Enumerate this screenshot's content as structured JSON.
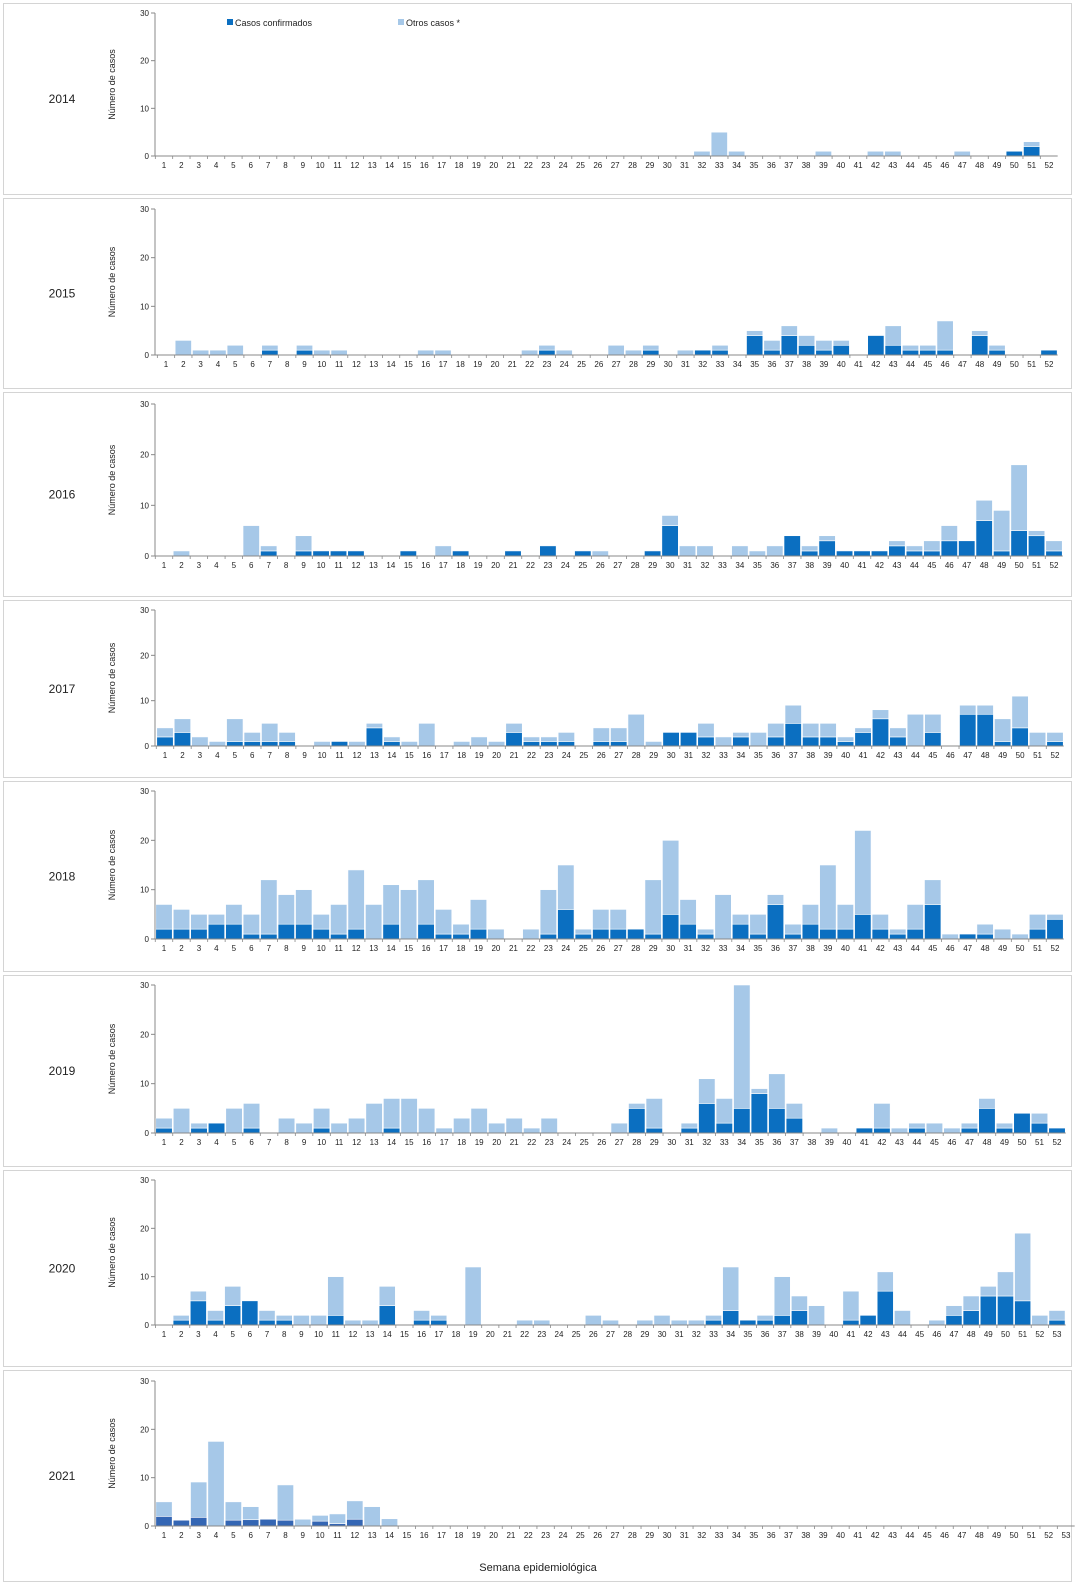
{
  "colors": {
    "confirmed": "#0b6fc1",
    "other": "#a6c8e8",
    "confirmed_alt": "#3466b4"
  },
  "legend": {
    "confirmed": "Casos confirmados",
    "other": "Otros casos *"
  },
  "x_axis_title": "Semana epidemiológica",
  "chart_data": [
    {
      "type": "bar",
      "year": "2014",
      "ylabel": "Número de casos",
      "ylim": [
        0,
        30
      ],
      "yticks": [
        0,
        10,
        20,
        30
      ],
      "weeks": 52,
      "series": [
        {
          "name": "Casos confirmados",
          "values": [
            0,
            0,
            0,
            0,
            0,
            0,
            0,
            0,
            0,
            0,
            0,
            0,
            0,
            0,
            0,
            0,
            0,
            0,
            0,
            0,
            0,
            0,
            0,
            0,
            0,
            0,
            0,
            0,
            0,
            0,
            0,
            0,
            0,
            0,
            0,
            0,
            0,
            0,
            0,
            0,
            0,
            0,
            0,
            0,
            0,
            0,
            0,
            0,
            0,
            1,
            2,
            0
          ]
        },
        {
          "name": "Otros casos *",
          "values": [
            0,
            0,
            0,
            0,
            0,
            0,
            0,
            0,
            0,
            0,
            0,
            0,
            0,
            0,
            0,
            0,
            0,
            0,
            0,
            0,
            0,
            0,
            0,
            0,
            0,
            0,
            0,
            0,
            0,
            0,
            0,
            1,
            5,
            1,
            0,
            0,
            0,
            0,
            1,
            0,
            0,
            1,
            1,
            0,
            0,
            0,
            1,
            0,
            0,
            0,
            1,
            0
          ]
        }
      ]
    },
    {
      "type": "bar",
      "year": "2015",
      "ylabel": "Número de casos",
      "ylim": [
        0,
        30
      ],
      "yticks": [
        0,
        10,
        20,
        30
      ],
      "weeks": 52,
      "series": [
        {
          "name": "Casos confirmados",
          "values": [
            0,
            0,
            0,
            0,
            0,
            0,
            1,
            0,
            1,
            0,
            0,
            0,
            0,
            0,
            0,
            0,
            0,
            0,
            0,
            0,
            0,
            0,
            1,
            0,
            0,
            0,
            0,
            0,
            1,
            0,
            0,
            1,
            1,
            0,
            4,
            1,
            4,
            2,
            1,
            2,
            0,
            4,
            2,
            1,
            1,
            1,
            0,
            4,
            1,
            0,
            0,
            1
          ]
        },
        {
          "name": "Otros casos *",
          "values": [
            0,
            3,
            1,
            1,
            2,
            0,
            1,
            0,
            1,
            1,
            1,
            0,
            0,
            0,
            0,
            1,
            1,
            0,
            0,
            0,
            0,
            1,
            1,
            1,
            0,
            0,
            2,
            1,
            1,
            0,
            1,
            0,
            1,
            0,
            1,
            2,
            2,
            2,
            2,
            1,
            0,
            0,
            4,
            1,
            1,
            6,
            0,
            1,
            1,
            0,
            0,
            0
          ]
        }
      ]
    },
    {
      "type": "bar",
      "year": "2016",
      "ylabel": "Número de casos",
      "ylim": [
        0,
        30
      ],
      "yticks": [
        0,
        10,
        20,
        30
      ],
      "weeks": 52,
      "series": [
        {
          "name": "Casos confirmados",
          "values": [
            0,
            0,
            0,
            0,
            0,
            0,
            1,
            0,
            1,
            1,
            1,
            1,
            0,
            0,
            1,
            0,
            0,
            1,
            0,
            0,
            1,
            0,
            2,
            0,
            1,
            0,
            0,
            0,
            1,
            6,
            0,
            0,
            0,
            0,
            0,
            0,
            4,
            1,
            3,
            1,
            1,
            1,
            2,
            1,
            1,
            3,
            3,
            7,
            1,
            5,
            4,
            1
          ]
        },
        {
          "name": "Otros casos *",
          "values": [
            0,
            1,
            0,
            0,
            0,
            6,
            1,
            0,
            3,
            0,
            0,
            0,
            0,
            0,
            0,
            0,
            2,
            0,
            0,
            0,
            0,
            0,
            0,
            0,
            0,
            1,
            0,
            0,
            0,
            2,
            2,
            2,
            0,
            2,
            1,
            2,
            0,
            1,
            1,
            0,
            0,
            0,
            1,
            1,
            2,
            3,
            0,
            4,
            8,
            13,
            1,
            2
          ]
        }
      ]
    },
    {
      "type": "bar",
      "year": "2017",
      "ylabel": "Número de casos",
      "ylim": [
        0,
        30
      ],
      "yticks": [
        0,
        10,
        20,
        30
      ],
      "weeks": 52,
      "series": [
        {
          "name": "Casos confirmados",
          "values": [
            2,
            3,
            0,
            0,
            1,
            1,
            1,
            1,
            0,
            0,
            1,
            0,
            4,
            1,
            0,
            0,
            0,
            0,
            0,
            0,
            3,
            1,
            1,
            1,
            0,
            1,
            1,
            0,
            0,
            3,
            3,
            2,
            0,
            2,
            0,
            2,
            5,
            2,
            2,
            1,
            3,
            6,
            2,
            0,
            3,
            0,
            7,
            7,
            1,
            4,
            0,
            1
          ]
        },
        {
          "name": "Otros casos *",
          "values": [
            2,
            3,
            2,
            1,
            5,
            2,
            4,
            2,
            0,
            1,
            0,
            1,
            1,
            1,
            1,
            5,
            0,
            1,
            2,
            1,
            2,
            1,
            1,
            2,
            0,
            3,
            3,
            7,
            1,
            0,
            0,
            3,
            2,
            1,
            3,
            3,
            4,
            3,
            3,
            1,
            1,
            2,
            2,
            7,
            4,
            0,
            2,
            2,
            5,
            7,
            3,
            2
          ]
        }
      ]
    },
    {
      "type": "bar",
      "year": "2018",
      "ylabel": "Número de casos",
      "ylim": [
        0,
        30
      ],
      "yticks": [
        0,
        10,
        20,
        30
      ],
      "weeks": 52,
      "series": [
        {
          "name": "Casos confirmados",
          "values": [
            2,
            2,
            2,
            3,
            3,
            1,
            1,
            3,
            3,
            2,
            1,
            2,
            0,
            3,
            0,
            3,
            1,
            1,
            2,
            0,
            0,
            0,
            1,
            6,
            1,
            2,
            2,
            2,
            1,
            5,
            3,
            1,
            0,
            3,
            1,
            7,
            1,
            3,
            2,
            2,
            5,
            2,
            1,
            2,
            7,
            0,
            1,
            1,
            0,
            0,
            2,
            4
          ]
        },
        {
          "name": "Otros casos *",
          "values": [
            5,
            4,
            3,
            2,
            4,
            4,
            11,
            6,
            7,
            3,
            6,
            12,
            7,
            8,
            10,
            9,
            5,
            2,
            6,
            2,
            0,
            2,
            9,
            9,
            1,
            4,
            4,
            0,
            11,
            15,
            5,
            1,
            9,
            2,
            4,
            2,
            2,
            4,
            13,
            5,
            17,
            3,
            1,
            5,
            5,
            1,
            0,
            2,
            2,
            1,
            3,
            1
          ]
        }
      ]
    },
    {
      "type": "bar",
      "year": "2019",
      "ylabel": "Número de casos",
      "ylim": [
        0,
        30
      ],
      "yticks": [
        0,
        10,
        20,
        30
      ],
      "weeks": 52,
      "series": [
        {
          "name": "Casos confirmados",
          "values": [
            1,
            0,
            1,
            2,
            0,
            1,
            0,
            0,
            0,
            1,
            0,
            0,
            0,
            1,
            0,
            0,
            0,
            0,
            0,
            0,
            0,
            0,
            0,
            0,
            0,
            0,
            0,
            5,
            1,
            0,
            1,
            6,
            2,
            5,
            8,
            5,
            3,
            0,
            0,
            0,
            1,
            1,
            0,
            1,
            0,
            0,
            1,
            5,
            1,
            4,
            2,
            1
          ]
        },
        {
          "name": "Otros casos *",
          "values": [
            2,
            5,
            1,
            0,
            5,
            5,
            0,
            3,
            2,
            4,
            2,
            3,
            6,
            6,
            7,
            5,
            1,
            3,
            5,
            2,
            3,
            1,
            3,
            0,
            0,
            0,
            2,
            1,
            6,
            0,
            1,
            5,
            5,
            25,
            1,
            7,
            3,
            0,
            1,
            0,
            0,
            5,
            1,
            1,
            2,
            1,
            1,
            2,
            1,
            0,
            2,
            0
          ]
        }
      ]
    },
    {
      "type": "bar",
      "year": "2020",
      "ylabel": "Número de casos",
      "ylim": [
        0,
        30
      ],
      "yticks": [
        0,
        10,
        20,
        30
      ],
      "weeks": 53,
      "series": [
        {
          "name": "Casos confirmados",
          "values": [
            0,
            1,
            5,
            1,
            4,
            5,
            1,
            1,
            0,
            0,
            2,
            0,
            0,
            4,
            0,
            1,
            1,
            0,
            0,
            0,
            0,
            0,
            0,
            0,
            0,
            0,
            0,
            0,
            0,
            0,
            0,
            0,
            1,
            3,
            1,
            1,
            2,
            3,
            0,
            0,
            1,
            2,
            7,
            0,
            0,
            0,
            2,
            3,
            6,
            6,
            5,
            0,
            1
          ]
        },
        {
          "name": "Otros casos *",
          "values": [
            0,
            1,
            2,
            2,
            4,
            0,
            2,
            1,
            2,
            2,
            8,
            1,
            1,
            4,
            0,
            2,
            1,
            0,
            12,
            0,
            0,
            1,
            1,
            0,
            0,
            2,
            1,
            0,
            1,
            2,
            1,
            1,
            1,
            9,
            0,
            1,
            8,
            3,
            4,
            0,
            6,
            0,
            4,
            3,
            0,
            1,
            2,
            3,
            2,
            5,
            14,
            2,
            2
          ]
        }
      ]
    },
    {
      "type": "bar",
      "year": "2021",
      "ylabel": "Número de casos",
      "ylim": [
        0,
        30
      ],
      "yticks": [
        0,
        10,
        20,
        30
      ],
      "weeks": 53,
      "confirmed_color_override": true,
      "series": [
        {
          "name": "Casos confirmados",
          "values": [
            2,
            1.2,
            1.8,
            0,
            1.2,
            1.3,
            1.4,
            1.2,
            0,
            1,
            0.5,
            1.4,
            0,
            0,
            0,
            0,
            0,
            0,
            0,
            0,
            0,
            0,
            0,
            0,
            0,
            0,
            0,
            0,
            0,
            0,
            0,
            0,
            0,
            0,
            0,
            0,
            0,
            0,
            0,
            0,
            0,
            0,
            0,
            0,
            0,
            0,
            0,
            0,
            0,
            0,
            0,
            0,
            0
          ]
        },
        {
          "name": "Otros casos *",
          "values": [
            3,
            0,
            7.3,
            17.5,
            3.8,
            2.7,
            0,
            7.3,
            1.4,
            1.2,
            2,
            3.8,
            4,
            1.5,
            0,
            0,
            0,
            0,
            0,
            0,
            0,
            0,
            0,
            0,
            0,
            0,
            0,
            0,
            0,
            0,
            0,
            0,
            0,
            0,
            0,
            0,
            0,
            0,
            0,
            0,
            0,
            0,
            0,
            0,
            0,
            0,
            0,
            0,
            0,
            0,
            0,
            0,
            0
          ]
        }
      ]
    }
  ]
}
